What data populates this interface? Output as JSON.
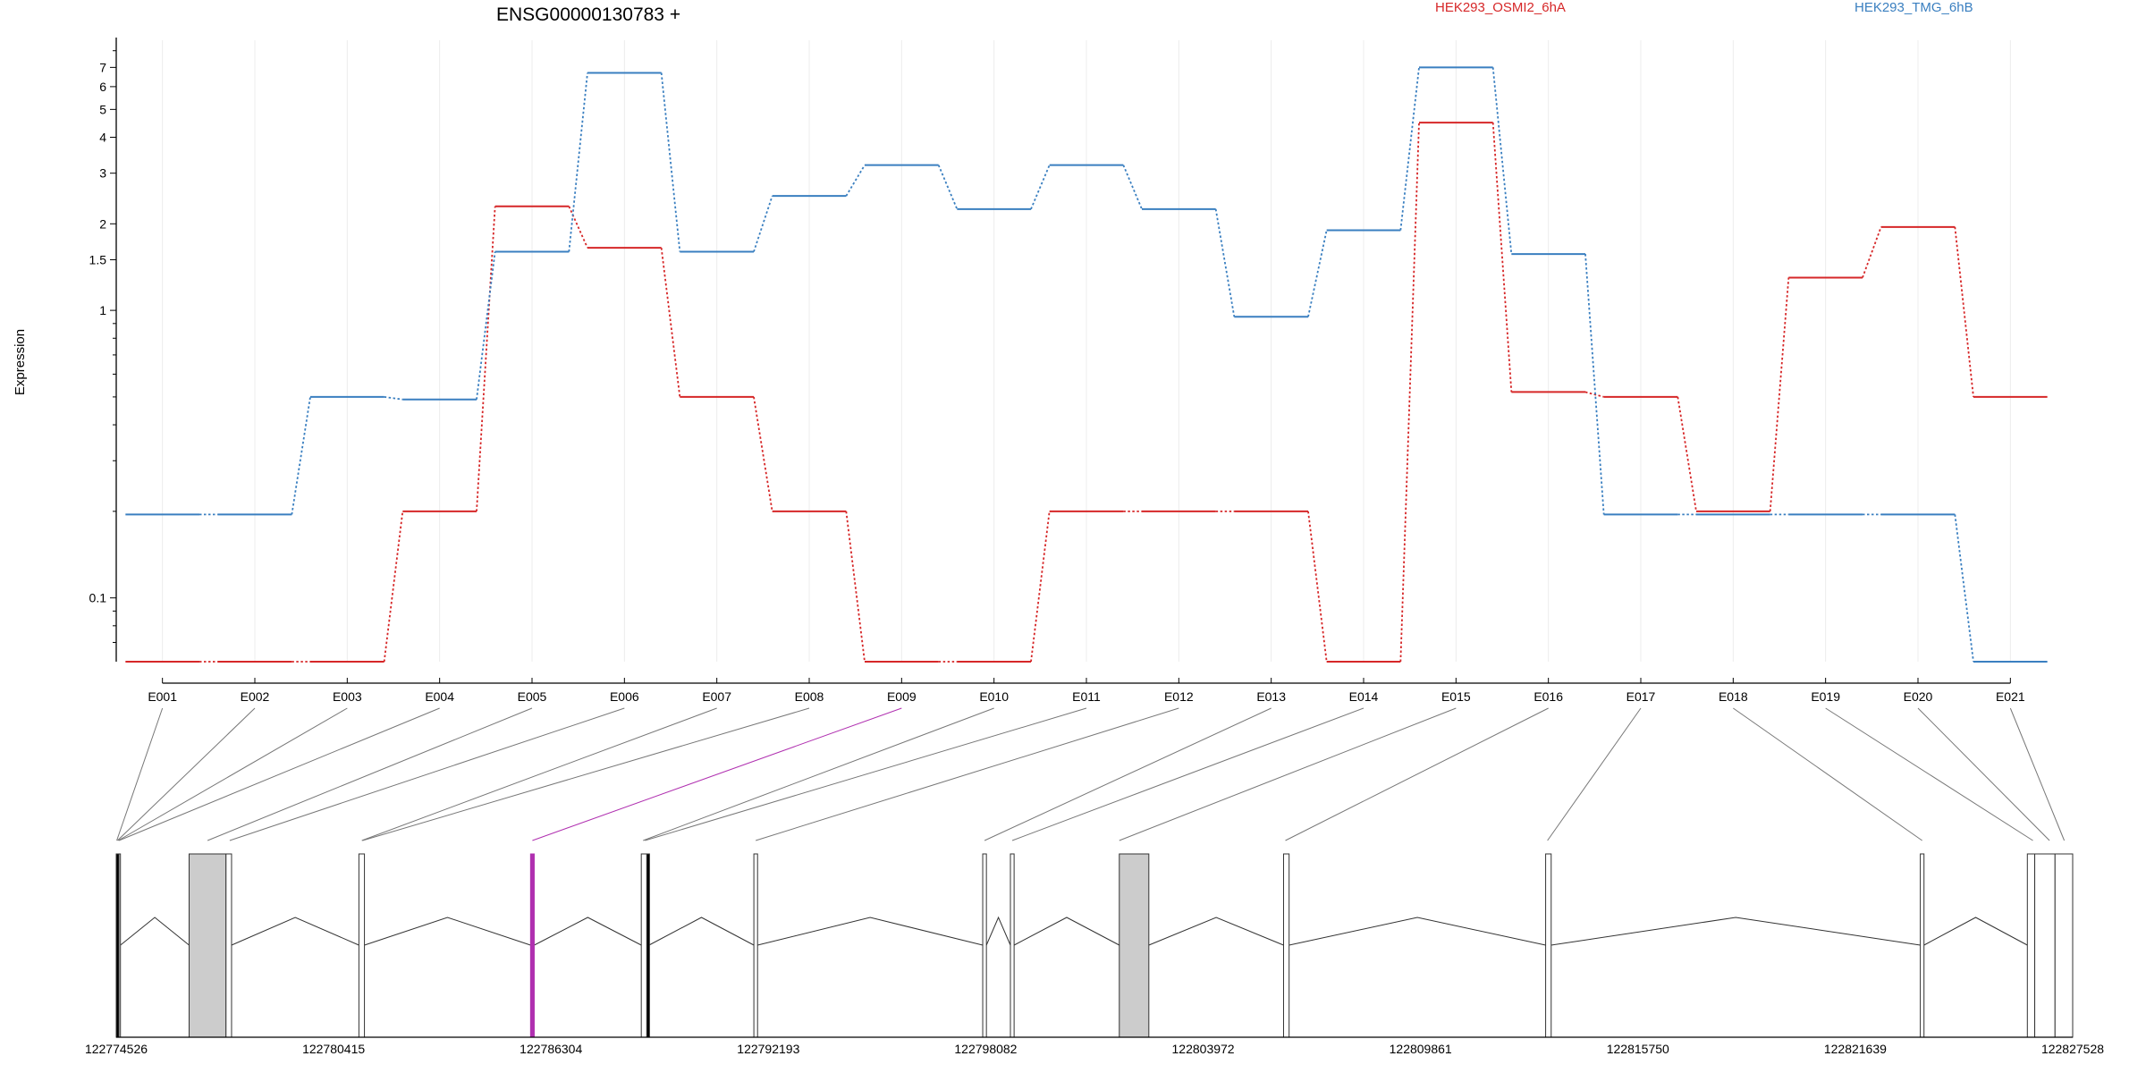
{
  "chart_data": {
    "type": "line",
    "title": "ENSG00000130783 +",
    "ylabel": "Expression",
    "yscale": "log",
    "ylim": [
      0.06,
      8.7
    ],
    "yticks": [
      {
        "v": 7,
        "label": "7"
      },
      {
        "v": 6,
        "label": "6"
      },
      {
        "v": 5,
        "label": "5"
      },
      {
        "v": 4,
        "label": "4"
      },
      {
        "v": 3,
        "label": "3"
      },
      {
        "v": 2,
        "label": "2"
      },
      {
        "v": 1.5,
        "label": "1.5"
      },
      {
        "v": 1,
        "label": "1"
      },
      {
        "v": 0.1,
        "label": "0.1"
      }
    ],
    "categories": [
      "E001",
      "E002",
      "E003",
      "E004",
      "E005",
      "E006",
      "E007",
      "E008",
      "E009",
      "E010",
      "E011",
      "E012",
      "E013",
      "E014",
      "E015",
      "E016",
      "E017",
      "E018",
      "E019",
      "E020",
      "E021"
    ],
    "legend_placement": "top",
    "series": [
      {
        "name": "HEK293_OSMI2_6hA",
        "color": "#d62728",
        "values": [
          0.06,
          0.06,
          0.06,
          0.2,
          2.3,
          1.65,
          0.5,
          0.2,
          0.06,
          0.06,
          0.2,
          0.2,
          0.2,
          0.06,
          4.5,
          0.52,
          0.5,
          0.2,
          1.3,
          1.95,
          0.5
        ]
      },
      {
        "name": "HEK293_TMG_6hB",
        "color": "#3a7fc0",
        "values": [
          0.195,
          0.195,
          0.5,
          0.49,
          1.6,
          6.7,
          1.6,
          2.5,
          3.2,
          2.25,
          3.2,
          2.25,
          0.95,
          1.9,
          7.0,
          1.57,
          0.195,
          0.195,
          0.195,
          0.195,
          0.06
        ]
      }
    ],
    "highlight_exon": "E009",
    "highlight_color": "#b030b0",
    "gene_model": {
      "coord_start": 122774526,
      "coord_end": 122827528,
      "coord_ticks": [
        "122774526",
        "122780415",
        "122786304",
        "122792193",
        "122798082",
        "122803972",
        "122809861",
        "122815750",
        "122821639",
        "122827528"
      ],
      "exons": [
        {
          "s": 122774526,
          "e": 122774640,
          "fill": "#ffffff"
        },
        {
          "s": 122774526,
          "e": 122774600,
          "fill": "#000000"
        },
        {
          "s": 122776500,
          "e": 122777500,
          "fill": "#cccccc"
        },
        {
          "s": 122777500,
          "e": 122777650,
          "fill": "#ffffff"
        },
        {
          "s": 122781100,
          "e": 122781250,
          "fill": "#ffffff"
        },
        {
          "s": 122785750,
          "e": 122785850,
          "fill": "#b030b0"
        },
        {
          "s": 122788750,
          "e": 122788900,
          "fill": "#ffffff"
        },
        {
          "s": 122788900,
          "e": 122788960,
          "fill": "#000000"
        },
        {
          "s": 122791800,
          "e": 122791900,
          "fill": "#ffffff"
        },
        {
          "s": 122798000,
          "e": 122798100,
          "fill": "#ffffff"
        },
        {
          "s": 122798750,
          "e": 122798850,
          "fill": "#ffffff"
        },
        {
          "s": 122801700,
          "e": 122802500,
          "fill": "#cccccc"
        },
        {
          "s": 122806150,
          "e": 122806300,
          "fill": "#ffffff"
        },
        {
          "s": 122813250,
          "e": 122813400,
          "fill": "#ffffff"
        },
        {
          "s": 122823400,
          "e": 122823500,
          "fill": "#ffffff"
        },
        {
          "s": 122826300,
          "e": 122826500,
          "fill": "#ffffff"
        },
        {
          "s": 122826500,
          "e": 122827050,
          "fill": "#ffffff"
        },
        {
          "s": 122827050,
          "e": 122827528,
          "fill": "#ffffff"
        }
      ],
      "exon_links": [
        122774540,
        122774560,
        122774580,
        122774600,
        122777000,
        122777600,
        122781180,
        122781200,
        122785800,
        122788800,
        122788850,
        122791850,
        122798050,
        122798800,
        122801700,
        122806200,
        122813300,
        122823450,
        122826450,
        122826900,
        122827300
      ]
    }
  }
}
